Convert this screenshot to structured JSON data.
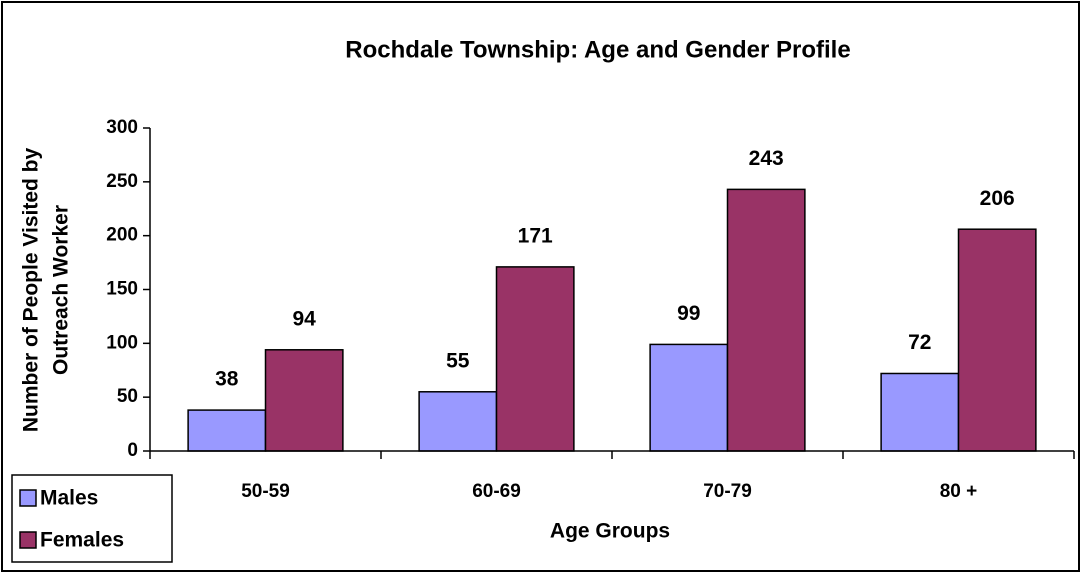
{
  "chart_data": {
    "type": "bar",
    "title": "Rochdale Township: Age and Gender Profile",
    "x_label": "Age Groups",
    "y_label": [
      "Number of People Visited by",
      "Outreach Worker"
    ],
    "categories": [
      "50-59",
      "60-69",
      "70-79",
      "80 +"
    ],
    "series": [
      {
        "name": "Males",
        "color": "#9999ff",
        "values": [
          38,
          55,
          99,
          72
        ]
      },
      {
        "name": "Females",
        "color": "#993366",
        "values": [
          94,
          171,
          243,
          206
        ]
      }
    ],
    "ylim": [
      0,
      300
    ],
    "yticks": [
      0,
      50,
      100,
      150,
      200,
      250,
      300
    ],
    "legend": "bottom-left"
  }
}
